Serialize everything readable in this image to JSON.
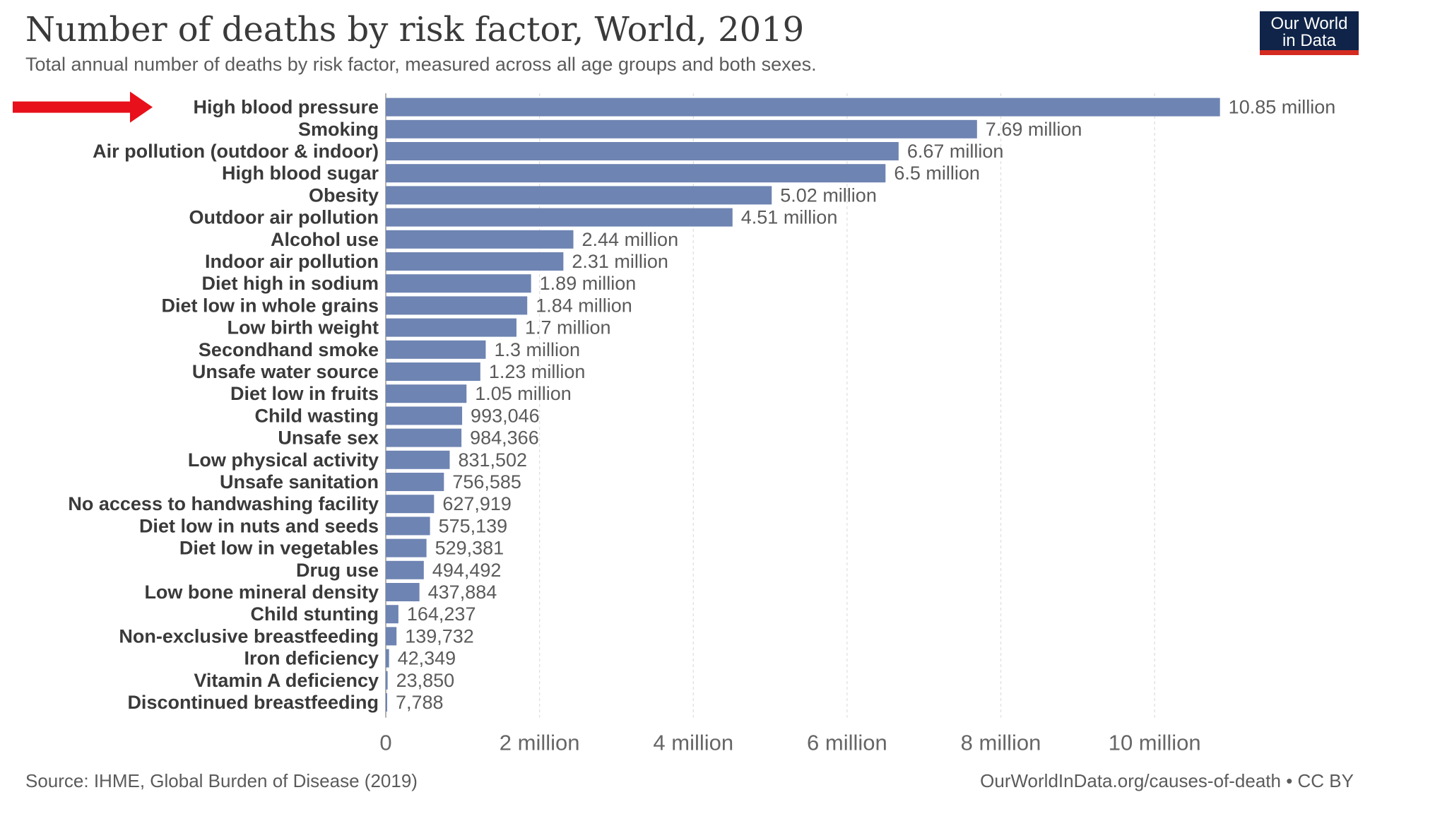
{
  "header": {
    "title": "Number of deaths by risk factor, World, 2019",
    "subtitle": "Total annual number of deaths by risk factor, measured across all age groups and both sexes."
  },
  "logo": {
    "line1": "Our World",
    "line2": "in Data"
  },
  "footer": {
    "source": "Source: IHME, Global Burden of Disease (2019)",
    "credit": "OurWorldInData.org/causes-of-death • CC BY"
  },
  "colors": {
    "bar": "#6e84b2",
    "grid": "#dddddd",
    "arrow": "#e8101a",
    "logo_bg": "#0f2448",
    "logo_accent": "#d42b21"
  },
  "annotation": {
    "arrow_target": "High blood pressure"
  },
  "chart_data": {
    "type": "bar",
    "orientation": "horizontal",
    "xlim": [
      0,
      11000000
    ],
    "xticks": [
      {
        "value": 0,
        "label": "0"
      },
      {
        "value": 2000000,
        "label": "2 million"
      },
      {
        "value": 4000000,
        "label": "4 million"
      },
      {
        "value": 6000000,
        "label": "6 million"
      },
      {
        "value": 8000000,
        "label": "8 million"
      },
      {
        "value": 10000000,
        "label": "10 million"
      }
    ],
    "grid": true,
    "categories": [
      "High blood pressure",
      "Smoking",
      "Air pollution (outdoor & indoor)",
      "High blood sugar",
      "Obesity",
      "Outdoor air pollution",
      "Alcohol use",
      "Indoor air pollution",
      "Diet high in sodium",
      "Diet low in whole grains",
      "Low birth weight",
      "Secondhand smoke",
      "Unsafe water source",
      "Diet low in fruits",
      "Child wasting",
      "Unsafe sex",
      "Low physical activity",
      "Unsafe sanitation",
      "No access to handwashing facility",
      "Diet low in nuts and seeds",
      "Diet low in vegetables",
      "Drug use",
      "Low bone mineral density",
      "Child stunting",
      "Non-exclusive breastfeeding",
      "Iron deficiency",
      "Vitamin A deficiency",
      "Discontinued breastfeeding"
    ],
    "values": [
      10850000,
      7690000,
      6670000,
      6500000,
      5020000,
      4510000,
      2440000,
      2310000,
      1890000,
      1840000,
      1700000,
      1300000,
      1230000,
      1050000,
      993046,
      984366,
      831502,
      756585,
      627919,
      575139,
      529381,
      494492,
      437884,
      164237,
      139732,
      42349,
      23850,
      7788
    ],
    "value_labels": [
      "10.85 million",
      "7.69 million",
      "6.67 million",
      "6.5 million",
      "5.02 million",
      "4.51 million",
      "2.44 million",
      "2.31 million",
      "1.89 million",
      "1.84 million",
      "1.7 million",
      "1.3 million",
      "1.23 million",
      "1.05 million",
      "993,046",
      "984,366",
      "831,502",
      "756,585",
      "627,919",
      "575,139",
      "529,381",
      "494,492",
      "437,884",
      "164,237",
      "139,732",
      "42,349",
      "23,850",
      "7,788"
    ]
  }
}
